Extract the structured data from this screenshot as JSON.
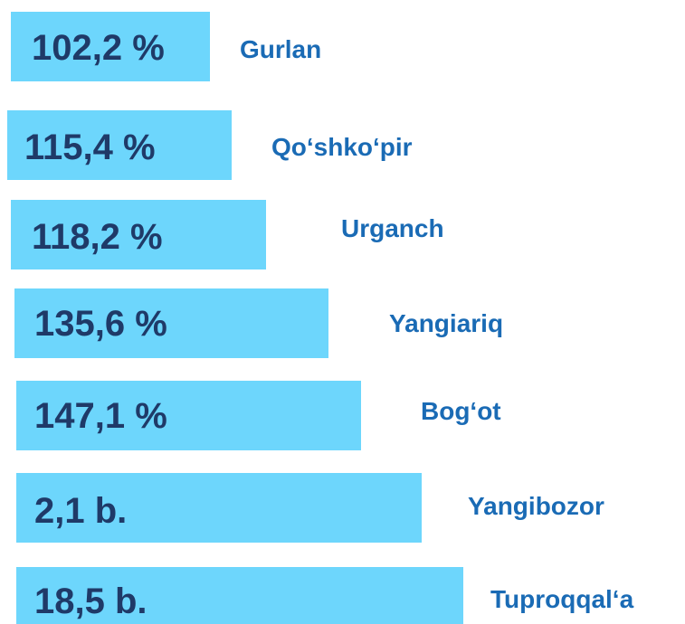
{
  "items": [
    {
      "value": "102,2 %",
      "name": "Gurlan"
    },
    {
      "value": "115,4 %",
      "name": "Qo‘shko‘pir"
    },
    {
      "value": "118,2 %",
      "name": "Urganch"
    },
    {
      "value": "135,6 %",
      "name": "Yangiariq"
    },
    {
      "value": "147,1 %",
      "name": "Bog‘ot"
    },
    {
      "value": "2,1 b.",
      "name": "Yangibozor"
    },
    {
      "value": "18,5 b.",
      "name": "Tuproqqal‘a"
    }
  ]
}
